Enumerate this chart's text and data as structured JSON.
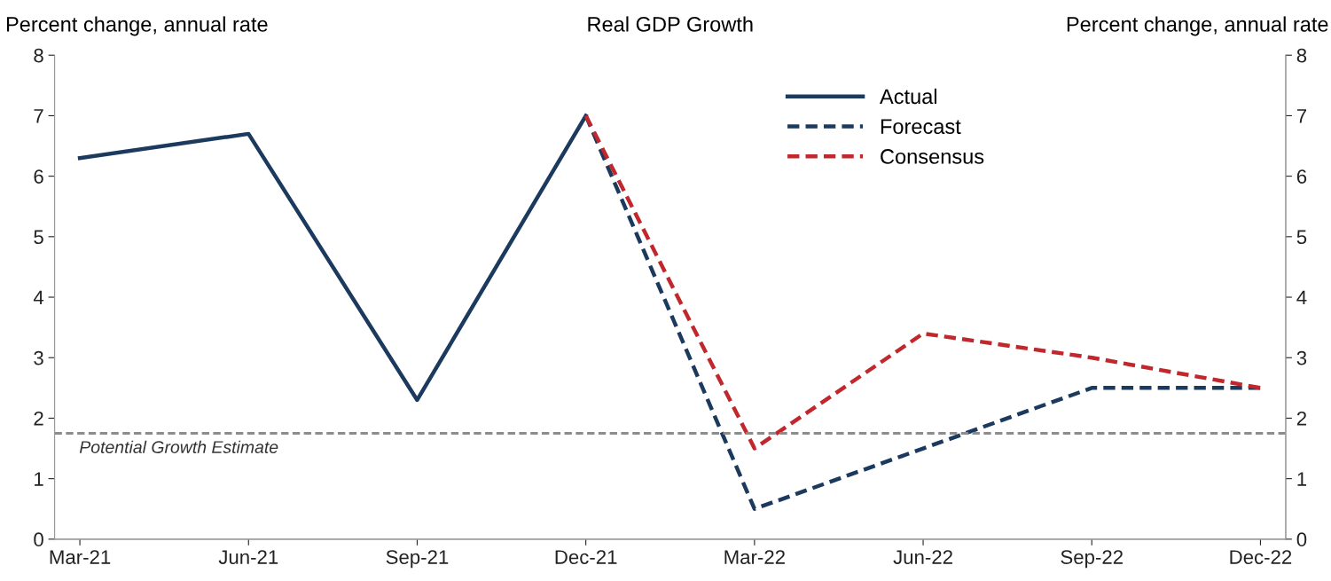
{
  "chart_data": {
    "type": "line",
    "title": "Real GDP Growth",
    "ylabel": "Percent change, annual rate",
    "y2label": "Percent change, annual rate",
    "categories": [
      "Mar-21",
      "Jun-21",
      "Sep-21",
      "Dec-21",
      "Mar-22",
      "Jun-22",
      "Sep-22",
      "Dec-22"
    ],
    "series": [
      {
        "name": "Actual",
        "color": "#1c3a5e",
        "line_style": "solid",
        "values": [
          6.3,
          6.7,
          2.3,
          7.0,
          null,
          null,
          null,
          null
        ]
      },
      {
        "name": "Forecast",
        "color": "#1c3a5e",
        "line_style": "dashed",
        "values": [
          null,
          null,
          null,
          7.0,
          0.5,
          1.5,
          2.5,
          2.5
        ]
      },
      {
        "name": "Consensus",
        "color": "#c0282d",
        "line_style": "dashed",
        "values": [
          null,
          null,
          null,
          7.0,
          1.5,
          3.4,
          3.0,
          2.5
        ]
      }
    ],
    "ylim": [
      0,
      8
    ],
    "yticks": [
      0,
      1,
      2,
      3,
      4,
      5,
      6,
      7,
      8
    ],
    "y2lim": [
      0,
      8
    ],
    "y2ticks": [
      0,
      1,
      2,
      3,
      4,
      5,
      6,
      7,
      8
    ],
    "ref_lines": [
      {
        "axis": "y",
        "value": 1.75,
        "label": "Potential Growth Estimate",
        "color": "#8c8c8c",
        "line_style": "dashed"
      }
    ],
    "legend": "top right",
    "grid": false,
    "marker": "none"
  }
}
